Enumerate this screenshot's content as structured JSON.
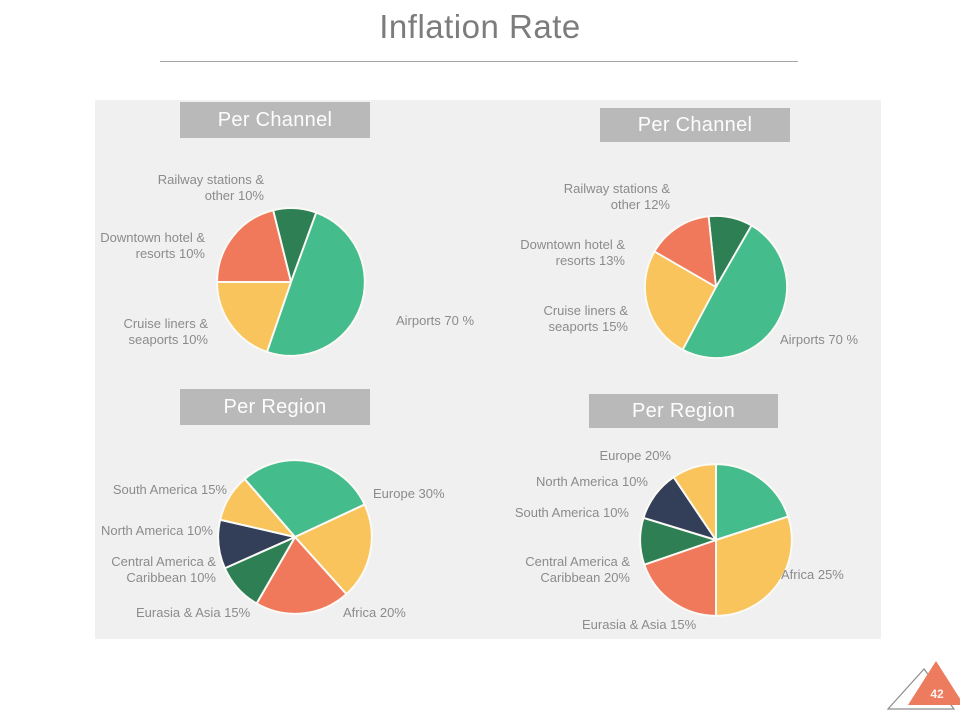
{
  "page": {
    "title": "Inflation Rate",
    "page_number": "42"
  },
  "colors": {
    "green": "#44bc8b",
    "dark_green": "#2e8054",
    "orange": "#f0795b",
    "yellow": "#f9c45c",
    "navy": "#333f58",
    "panel_bg": "#f0f0f0",
    "header_bar_bg": "#b9b9b9",
    "header_text": "#fdfdfd",
    "label_text": "#8b8b8b",
    "title_text": "#7c7c7c",
    "badge_fill": "#ed7b5e",
    "slice_gap": "#fbfaf6"
  },
  "chart_data": [
    {
      "id": "per-channel-left",
      "type": "pie",
      "title": "Per Channel",
      "start_deg": -14,
      "slices": [
        {
          "label": "Railway stations & other",
          "pct": 10,
          "deg": 34,
          "color": "#2e8054"
        },
        {
          "label": "Airports",
          "pct": 70,
          "deg": 179,
          "color": "#44bc8b"
        },
        {
          "label": "Cruise liners & seaports",
          "pct": 10,
          "deg": 71,
          "color": "#f9c45c"
        },
        {
          "label": "Downtown hotel & resorts",
          "pct": 10,
          "deg": 76,
          "color": "#f0795b"
        }
      ],
      "callouts": {
        "railway": "Railway stations &\nother 10%",
        "downtown": "Downtown hotel &\nresorts 10%",
        "cruise": "Cruise liners &\nseaports 10%",
        "airports": "Airports 70 %"
      }
    },
    {
      "id": "per-channel-right",
      "type": "pie",
      "title": "Per Channel",
      "start_deg": -6,
      "slices": [
        {
          "label": "Railway stations & other",
          "pct": 12,
          "deg": 36,
          "color": "#2e8054"
        },
        {
          "label": "Airports",
          "pct": 70,
          "deg": 178,
          "color": "#44bc8b"
        },
        {
          "label": "Cruise liners & seaports",
          "pct": 15,
          "deg": 92,
          "color": "#f9c45c"
        },
        {
          "label": "Downtown hotel & resorts",
          "pct": 13,
          "deg": 54,
          "color": "#f0795b"
        }
      ],
      "callouts": {
        "railway": "Railway stations &\nother 12%",
        "downtown": "Downtown hotel &\nresorts 13%",
        "cruise": "Cruise liners &\nseaports 15%",
        "airports": "Airports 70 %"
      }
    },
    {
      "id": "per-region-left",
      "type": "pie",
      "title": "Per Region",
      "start_deg": -41,
      "slices": [
        {
          "label": "Europe",
          "pct": 30,
          "deg": 106,
          "color": "#44bc8b"
        },
        {
          "label": "Africa",
          "pct": 20,
          "deg": 73,
          "color": "#f9c45c"
        },
        {
          "label": "Eurasia & Asia",
          "pct": 15,
          "deg": 72,
          "color": "#f0795b"
        },
        {
          "label": "Central America & Caribbean",
          "pct": 10,
          "deg": 36,
          "color": "#2e8054"
        },
        {
          "label": "North America",
          "pct": 10,
          "deg": 37,
          "color": "#333f58"
        },
        {
          "label": "South America",
          "pct": 15,
          "deg": 36,
          "color": "#f9c45c"
        }
      ],
      "callouts": {
        "south_america": "South America 15%",
        "north_america": "North America 10%",
        "central_america": "Central America &\nCaribbean 10%",
        "eurasia": "Eurasia & Asia 15%",
        "europe": "Europe 30%",
        "africa": "Africa 20%"
      }
    },
    {
      "id": "per-region-right",
      "type": "pie",
      "title": "Per Region",
      "start_deg": 0,
      "slices": [
        {
          "label": "Europe",
          "pct": 20,
          "deg": 72,
          "color": "#44bc8b"
        },
        {
          "label": "Africa",
          "pct": 25,
          "deg": 108,
          "color": "#f9c45c"
        },
        {
          "label": "Eurasia & Asia",
          "pct": 15,
          "deg": 71,
          "color": "#f0795b"
        },
        {
          "label": "Central America & Caribbean",
          "pct": 20,
          "deg": 36,
          "color": "#2e8054"
        },
        {
          "label": "South America",
          "pct": 10,
          "deg": 39,
          "color": "#333f58"
        },
        {
          "label": "North America",
          "pct": 10,
          "deg": 34,
          "color": "#f9c45c"
        }
      ],
      "callouts": {
        "europe": "Europe 20%",
        "north_america": "North America 10%",
        "south_america": "South America 10%",
        "central_america": "Central America &\nCaribbean 20%",
        "eurasia": "Eurasia & Asia 15%",
        "africa": "Africa 25%"
      }
    }
  ]
}
